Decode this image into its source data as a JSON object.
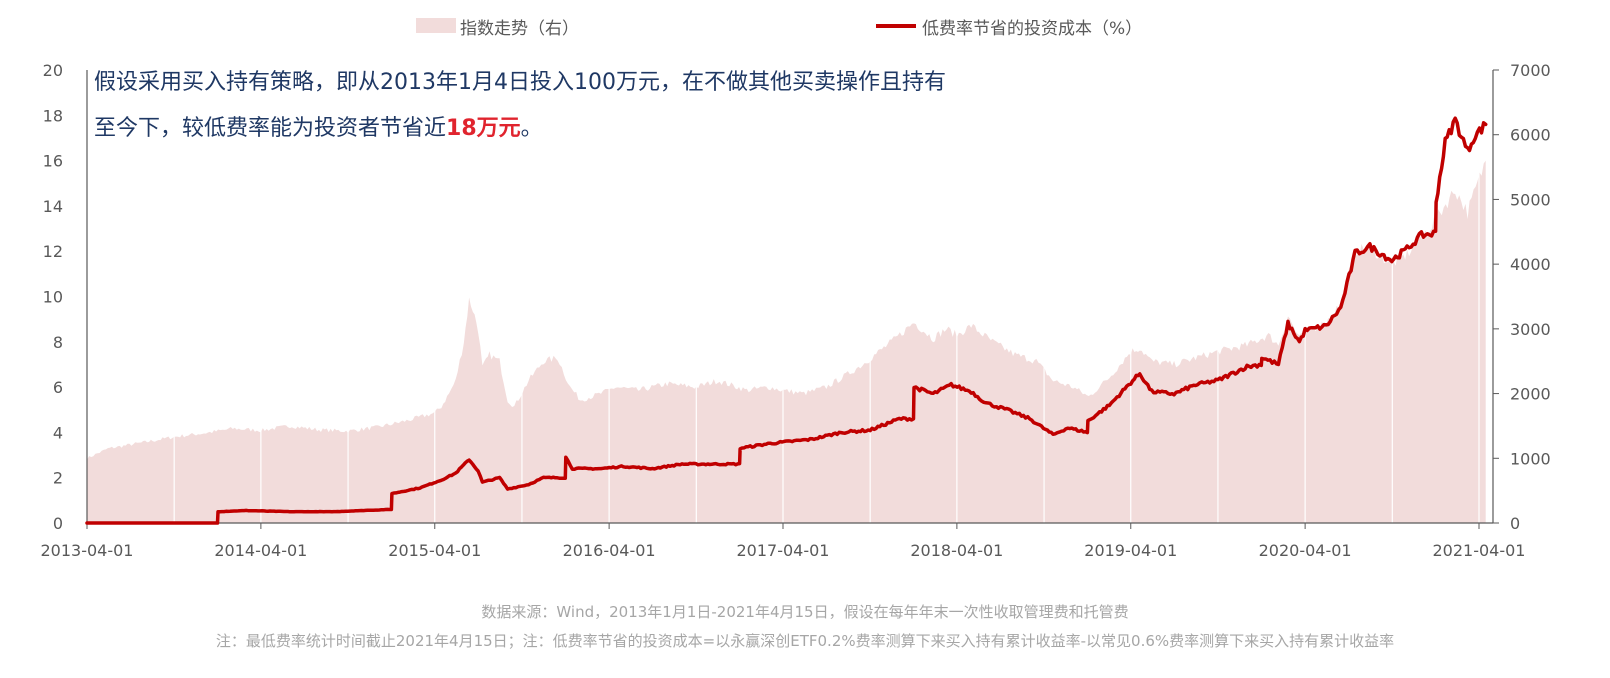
{
  "legend": {
    "index_label": "指数走势（右）",
    "cost_label": "低费率节省的投资成本（%）"
  },
  "annotation": {
    "line1": "假设采用买入持有策略，即从2013年1月4日投入100万元，在不做其他买卖操作且持有",
    "line2_prefix": "至今下，较低费率能为投资者节省近",
    "line2_highlight": "18万元",
    "line2_suffix": "。"
  },
  "footnotes": {
    "source": "数据来源：Wind，2013年1月1日-2021年4月15日，假设在每年年末一次性收取管理费和托管费",
    "note": "注：最低费率统计时间截止2021年4月15日；注：低费率节省的投资成本=以永赢深创ETF0.2%费率测算下来买入持有累计收益率-以常见0.6%费率测算下来买入持有累计收益率"
  },
  "colors": {
    "area": "#f2dcdb",
    "line": "#c00000",
    "axis": "#595959",
    "highlight": "#e0242e",
    "annotation": "#1f3864"
  },
  "chart_data": {
    "type": "line",
    "x_axis": {
      "ticks": [
        "2013-04-01",
        "2014-04-01",
        "2015-04-01",
        "2016-04-01",
        "2017-04-01",
        "2018-04-01",
        "2019-04-01",
        "2020-04-01",
        "2021-04-01"
      ],
      "start": "2013-04-01",
      "end": "2021-04-15"
    },
    "y_left": {
      "ylim": [
        0,
        20
      ],
      "ticks": [
        0,
        2,
        4,
        6,
        8,
        10,
        12,
        14,
        16,
        18,
        20
      ]
    },
    "y_right": {
      "ylim": [
        0,
        7000
      ],
      "ticks": [
        0,
        1000,
        2000,
        3000,
        4000,
        5000,
        6000,
        7000
      ]
    },
    "grid": false,
    "legend_position": "top",
    "series": [
      {
        "name": "指数走势（右）",
        "type": "area",
        "axis": "right",
        "points": [
          [
            "2013-04-01",
            1000
          ],
          [
            "2013-05-15",
            1150
          ],
          [
            "2013-08-01",
            1250
          ],
          [
            "2013-10-01",
            1330
          ],
          [
            "2013-12-15",
            1400
          ],
          [
            "2014-02-01",
            1460
          ],
          [
            "2014-04-01",
            1430
          ],
          [
            "2014-06-01",
            1500
          ],
          [
            "2014-08-01",
            1440
          ],
          [
            "2014-10-01",
            1420
          ],
          [
            "2014-12-01",
            1480
          ],
          [
            "2015-02-01",
            1580
          ],
          [
            "2015-04-01",
            1700
          ],
          [
            "2015-04-15",
            1800
          ],
          [
            "2015-05-01",
            2000
          ],
          [
            "2015-05-15",
            2200
          ],
          [
            "2015-06-01",
            2800
          ],
          [
            "2015-06-12",
            3450
          ],
          [
            "2015-06-20",
            3300
          ],
          [
            "2015-07-01",
            3000
          ],
          [
            "2015-07-10",
            2400
          ],
          [
            "2015-07-25",
            2600
          ],
          [
            "2015-08-15",
            2500
          ],
          [
            "2015-09-01",
            1900
          ],
          [
            "2015-09-15",
            1800
          ],
          [
            "2015-10-15",
            2200
          ],
          [
            "2015-11-15",
            2500
          ],
          [
            "2015-12-15",
            2550
          ],
          [
            "2016-01-10",
            2100
          ],
          [
            "2016-02-01",
            1900
          ],
          [
            "2016-03-15",
            2000
          ],
          [
            "2016-04-15",
            2100
          ],
          [
            "2016-06-01",
            2050
          ],
          [
            "2016-08-01",
            2150
          ],
          [
            "2016-10-01",
            2100
          ],
          [
            "2016-11-15",
            2200
          ],
          [
            "2017-01-15",
            2050
          ],
          [
            "2017-03-01",
            2100
          ],
          [
            "2017-04-01",
            2050
          ],
          [
            "2017-05-15",
            2000
          ],
          [
            "2017-07-01",
            2100
          ],
          [
            "2017-08-15",
            2300
          ],
          [
            "2017-09-15",
            2450
          ],
          [
            "2017-11-15",
            2800
          ],
          [
            "2018-01-01",
            3100
          ],
          [
            "2018-02-10",
            2850
          ],
          [
            "2018-03-10",
            3000
          ],
          [
            "2018-04-01",
            2900
          ],
          [
            "2018-05-01",
            3050
          ],
          [
            "2018-06-15",
            2800
          ],
          [
            "2018-08-01",
            2600
          ],
          [
            "2018-09-15",
            2500
          ],
          [
            "2018-10-20",
            2200
          ],
          [
            "2018-12-01",
            2100
          ],
          [
            "2019-01-03",
            1950
          ],
          [
            "2019-02-15",
            2250
          ],
          [
            "2019-04-01",
            2650
          ],
          [
            "2019-04-20",
            2700
          ],
          [
            "2019-05-15",
            2500
          ],
          [
            "2019-07-01",
            2450
          ],
          [
            "2019-08-15",
            2550
          ],
          [
            "2019-10-01",
            2650
          ],
          [
            "2019-12-01",
            2750
          ],
          [
            "2020-01-15",
            2900
          ],
          [
            "2020-02-05",
            2750
          ],
          [
            "2020-02-25",
            3200
          ],
          [
            "2020-03-20",
            2850
          ],
          [
            "2020-04-01",
            2950
          ],
          [
            "2020-05-15",
            3100
          ],
          [
            "2020-06-15",
            3400
          ],
          [
            "2020-07-15",
            4200
          ],
          [
            "2020-08-15",
            4250
          ],
          [
            "2020-09-30",
            4000
          ],
          [
            "2020-11-01",
            4150
          ],
          [
            "2020-12-01",
            4400
          ],
          [
            "2021-01-01",
            4700
          ],
          [
            "2021-02-10",
            5150
          ],
          [
            "2021-03-08",
            4800
          ],
          [
            "2021-04-15",
            5600
          ]
        ]
      },
      {
        "name": "低费率节省的投资成本（%）",
        "type": "line",
        "axis": "left",
        "points": [
          [
            "2013-04-01",
            0
          ],
          [
            "2013-12-31",
            0
          ],
          [
            "2014-01-01",
            0.5
          ],
          [
            "2014-03-01",
            0.55
          ],
          [
            "2014-06-01",
            0.5
          ],
          [
            "2014-09-01",
            0.5
          ],
          [
            "2014-12-31",
            0.6
          ],
          [
            "2015-01-01",
            1.3
          ],
          [
            "2015-03-01",
            1.55
          ],
          [
            "2015-04-15",
            1.9
          ],
          [
            "2015-05-15",
            2.2
          ],
          [
            "2015-06-12",
            2.8
          ],
          [
            "2015-07-01",
            2.3
          ],
          [
            "2015-07-10",
            1.8
          ],
          [
            "2015-08-15",
            2.0
          ],
          [
            "2015-09-01",
            1.5
          ],
          [
            "2015-10-15",
            1.7
          ],
          [
            "2015-11-15",
            2.0
          ],
          [
            "2015-12-31",
            2.0
          ],
          [
            "2016-01-01",
            2.9
          ],
          [
            "2016-01-15",
            2.4
          ],
          [
            "2016-03-15",
            2.4
          ],
          [
            "2016-05-01",
            2.5
          ],
          [
            "2016-07-01",
            2.4
          ],
          [
            "2016-09-01",
            2.6
          ],
          [
            "2016-11-15",
            2.6
          ],
          [
            "2016-12-31",
            2.6
          ],
          [
            "2017-01-01",
            3.3
          ],
          [
            "2017-03-01",
            3.5
          ],
          [
            "2017-06-01",
            3.7
          ],
          [
            "2017-08-01",
            4.0
          ],
          [
            "2017-10-01",
            4.1
          ],
          [
            "2017-12-01",
            4.6
          ],
          [
            "2017-12-31",
            4.6
          ],
          [
            "2018-01-01",
            6.0
          ],
          [
            "2018-02-10",
            5.7
          ],
          [
            "2018-03-20",
            6.1
          ],
          [
            "2018-05-01",
            5.8
          ],
          [
            "2018-06-01",
            5.3
          ],
          [
            "2018-07-15",
            5.0
          ],
          [
            "2018-09-01",
            4.6
          ],
          [
            "2018-10-20",
            3.9
          ],
          [
            "2018-11-20",
            4.2
          ],
          [
            "2018-12-31",
            4.0
          ],
          [
            "2019-01-01",
            4.5
          ],
          [
            "2019-02-15",
            5.2
          ],
          [
            "2019-04-01",
            6.2
          ],
          [
            "2019-04-20",
            6.6
          ],
          [
            "2019-05-15",
            5.8
          ],
          [
            "2019-07-01",
            5.7
          ],
          [
            "2019-08-15",
            6.1
          ],
          [
            "2019-10-01",
            6.3
          ],
          [
            "2019-12-01",
            6.9
          ],
          [
            "2019-12-31",
            7.0
          ],
          [
            "2020-01-01",
            7.3
          ],
          [
            "2020-02-05",
            7.0
          ],
          [
            "2020-02-25",
            8.8
          ],
          [
            "2020-03-20",
            8.0
          ],
          [
            "2020-04-01",
            8.5
          ],
          [
            "2020-05-15",
            8.7
          ],
          [
            "2020-06-15",
            9.5
          ],
          [
            "2020-07-15",
            11.9
          ],
          [
            "2020-08-15",
            12.2
          ],
          [
            "2020-09-30",
            11.6
          ],
          [
            "2020-11-01",
            12.1
          ],
          [
            "2020-12-01",
            12.7
          ],
          [
            "2020-12-31",
            12.8
          ],
          [
            "2021-01-01",
            14.2
          ],
          [
            "2021-01-20",
            16.8
          ],
          [
            "2021-02-10",
            17.8
          ],
          [
            "2021-03-08",
            16.4
          ],
          [
            "2021-03-20",
            17.0
          ],
          [
            "2021-04-15",
            17.6
          ]
        ]
      }
    ]
  }
}
